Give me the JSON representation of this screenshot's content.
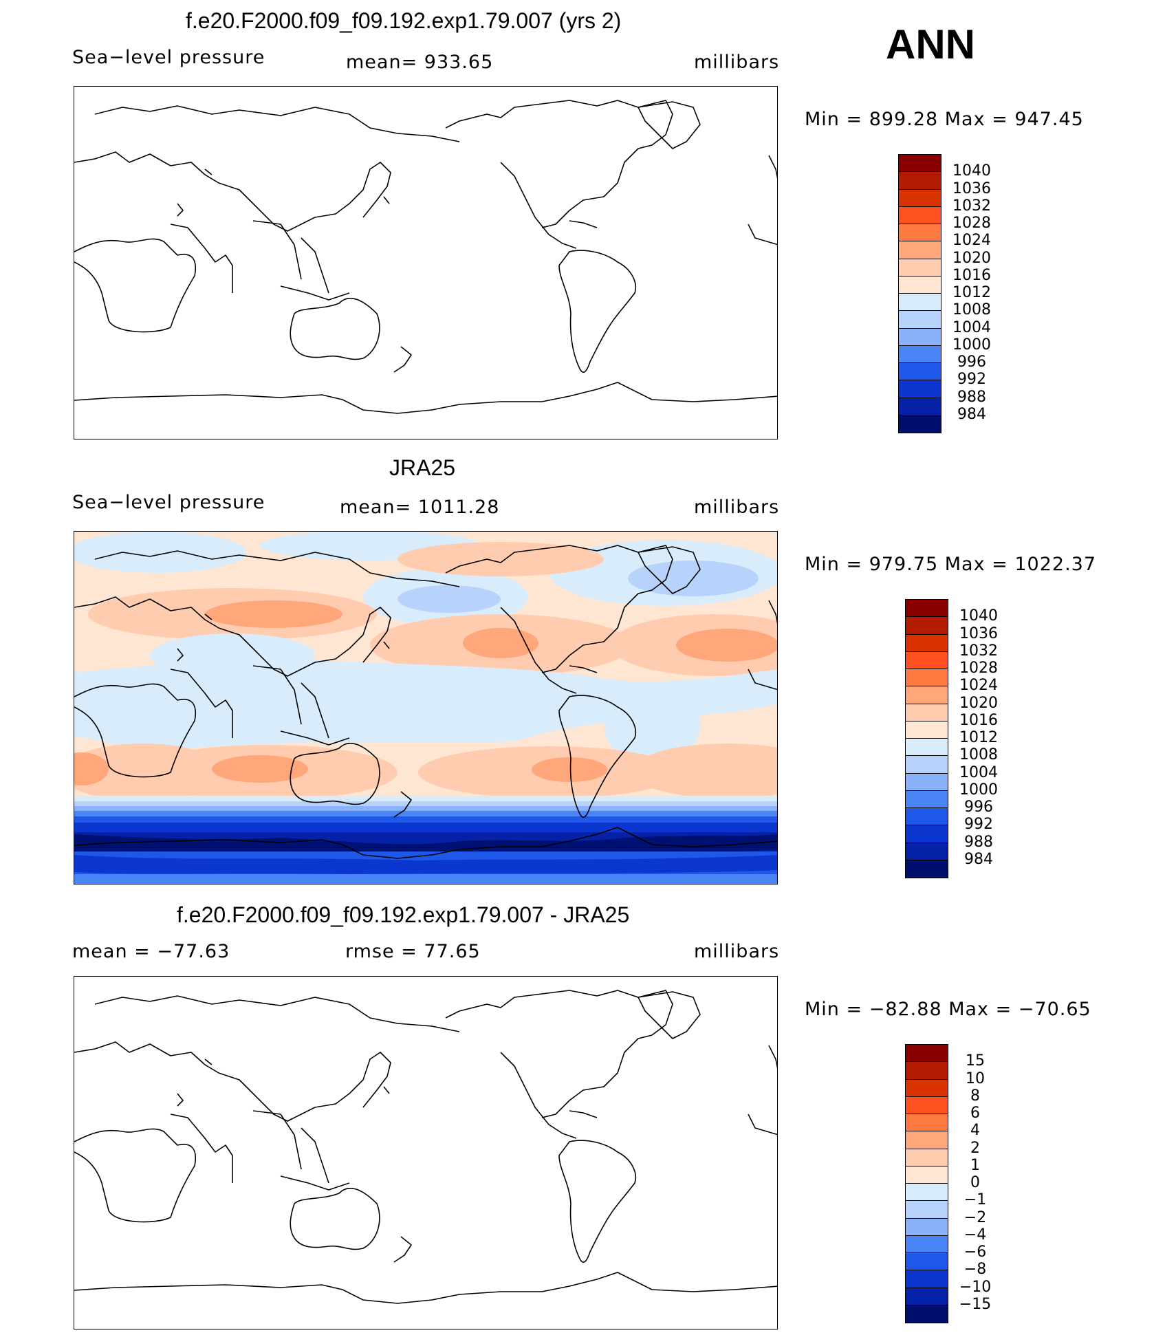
{
  "annotation": "ANN",
  "panels": [
    {
      "title": "f.e20.F2000.f09_f09.192.exp1.79.007 (yrs 2)",
      "left_label": "Sea−level pressure",
      "center_label": "mean=  933.65",
      "units": "millibars",
      "minmax": "Min  =  899.28  Max  =  947.45",
      "colorbar_labels": [
        "1040",
        "1036",
        "1032",
        "1028",
        "1024",
        "1020",
        "1016",
        "1012",
        "1008",
        "1004",
        "1000",
        "996",
        "992",
        "988",
        "984"
      ],
      "filled": false
    },
    {
      "title": "JRA25",
      "left_label": "Sea−level pressure",
      "center_label": "mean=  1011.28",
      "units": "millibars",
      "minmax": "Min  =  979.75  Max  =  1022.37",
      "colorbar_labels": [
        "1040",
        "1036",
        "1032",
        "1028",
        "1024",
        "1020",
        "1016",
        "1012",
        "1008",
        "1004",
        "1000",
        "996",
        "992",
        "988",
        "984"
      ],
      "filled": true
    },
    {
      "title": "f.e20.F2000.f09_f09.192.exp1.79.007 - JRA25",
      "left_label": "mean  =  −77.63",
      "center_label": "rmse  =    77.65",
      "units": "millibars",
      "minmax": "Min  =  −82.88  Max  =  −70.65",
      "colorbar_labels": [
        "15",
        "10",
        "8",
        "6",
        "4",
        "2",
        "1",
        "0",
        "−1",
        "−2",
        "−4",
        "−6",
        "−8",
        "−10",
        "−15"
      ],
      "filled": false
    }
  ],
  "colors": [
    "#8a0000",
    "#b31b00",
    "#d93300",
    "#ff5020",
    "#ff7a40",
    "#ffa67a",
    "#ffccb0",
    "#fee6d2",
    "#d8ecfb",
    "#b7d3fc",
    "#8ab2fb",
    "#4a85f5",
    "#1f58e8",
    "#0b36d0",
    "#0421a8",
    "#000f6e"
  ]
}
